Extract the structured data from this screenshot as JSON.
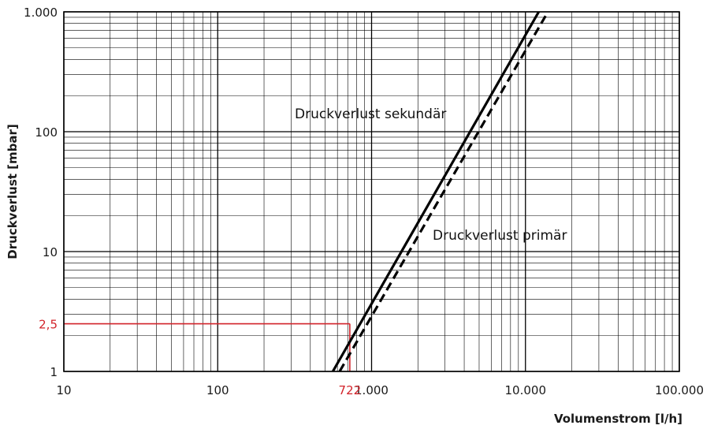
{
  "chart_data": {
    "type": "line",
    "xlabel": "Volumenstrom [l/h]",
    "ylabel": "Druckverlust [mbar]",
    "x_scale": "log",
    "y_scale": "log",
    "xlim": [
      10,
      100000
    ],
    "ylim": [
      1,
      1000
    ],
    "grid": true,
    "x_ticks": [
      {
        "value": 10,
        "label": "10"
      },
      {
        "value": 100,
        "label": "100"
      },
      {
        "value": 1000,
        "label": "1.000"
      },
      {
        "value": 10000,
        "label": "10.000"
      },
      {
        "value": 100000,
        "label": "100.000"
      }
    ],
    "y_ticks": [
      {
        "value": 1,
        "label": "1"
      },
      {
        "value": 10,
        "label": "10"
      },
      {
        "value": 100,
        "label": "100"
      },
      {
        "value": 1000,
        "label": "1.000"
      }
    ],
    "series": [
      {
        "name": "Druckverlust sekundär",
        "style": "solid",
        "color": "#000000",
        "points": [
          [
            560,
            1
          ],
          [
            12200,
            1000
          ]
        ]
      },
      {
        "name": "Druckverlust primär",
        "style": "dashed",
        "color": "#000000",
        "points": [
          [
            620,
            1
          ],
          [
            14000,
            1000
          ]
        ]
      }
    ],
    "annotations": [
      {
        "kind": "reference",
        "x": 722,
        "y": 2.5,
        "x_label": "722",
        "y_label": "2,5",
        "color": "#d2232a"
      }
    ]
  }
}
